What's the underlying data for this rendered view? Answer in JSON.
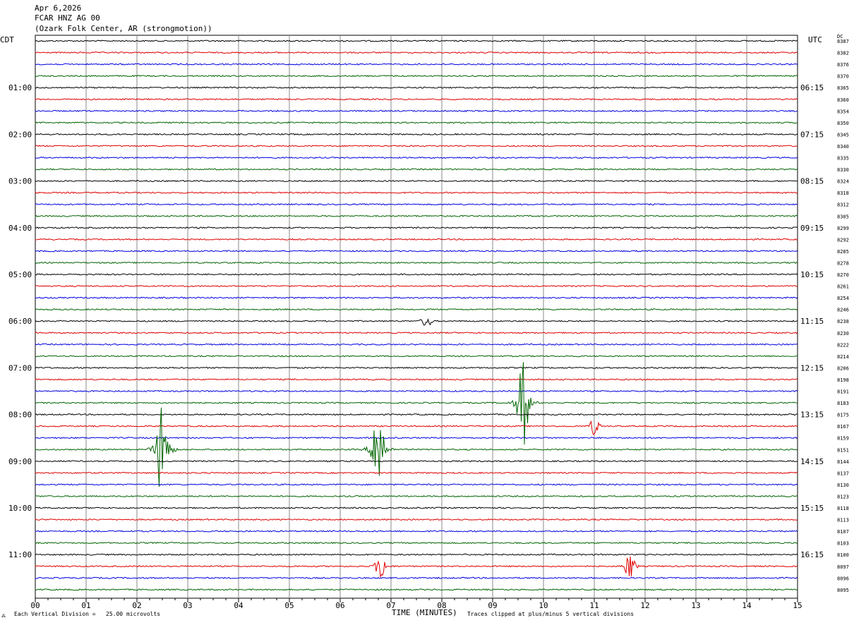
{
  "header": {
    "date": "Apr 6,2026",
    "station": "FCAR HNZ AG 00",
    "location": "(Ozark Folk Center, AR (strongmotion))"
  },
  "left_tz": "CDT",
  "right_tz": "UTC",
  "dc_label": "DC",
  "footer": {
    "scale": "Each Vertical Division =   25.00 microvolts",
    "x_title": "TIME (MINUTES)",
    "clip_note": "Traces clipped at plus/minus 5 vertical divisions"
  },
  "chart_data": {
    "type": "seismogram",
    "x_range": [
      0,
      15
    ],
    "x_tick_labels": [
      "00",
      "01",
      "02",
      "03",
      "04",
      "05",
      "06",
      "07",
      "08",
      "09",
      "10",
      "11",
      "12",
      "13",
      "14",
      "15"
    ],
    "trace_colors": [
      "#000000",
      "#e00000",
      "#0000e0",
      "#006400"
    ],
    "left_hour_labels": [
      "01:00",
      "02:00",
      "03:00",
      "04:00",
      "05:00",
      "06:00",
      "07:00",
      "08:00",
      "09:00",
      "10:00",
      "11:00"
    ],
    "right_hour_labels": [
      "06:15",
      "07:15",
      "08:15",
      "09:15",
      "10:15",
      "11:15",
      "12:15",
      "13:15",
      "14:15",
      "15:15",
      "16:15"
    ],
    "dc_offsets": [
      8387,
      8382,
      8376,
      8370,
      8365,
      8360,
      8354,
      8350,
      8345,
      8340,
      8335,
      8330,
      8324,
      8318,
      8312,
      8305,
      8299,
      8292,
      8285,
      8278,
      8270,
      8261,
      8254,
      8246,
      8238,
      8230,
      8222,
      8214,
      8206,
      8198,
      8191,
      8183,
      8175,
      8167,
      8159,
      8151,
      8144,
      8137,
      8130,
      8123,
      8118,
      8113,
      8107,
      8103,
      8100,
      8097,
      8096,
      8095
    ],
    "events": [
      {
        "row": 35,
        "minute": 2.5,
        "amplitude": 1.0
      },
      {
        "row": 35,
        "minute": 6.75,
        "amplitude": 1.0
      },
      {
        "row": 31,
        "minute": 9.6,
        "amplitude": 0.85
      },
      {
        "row": 33,
        "minute": 11.0,
        "amplitude": 0.15
      },
      {
        "row": 24,
        "minute": 7.7,
        "amplitude": 0.12
      },
      {
        "row": 45,
        "minute": 6.8,
        "amplitude": 0.25
      },
      {
        "row": 45,
        "minute": 11.7,
        "amplitude": 0.25
      }
    ]
  }
}
